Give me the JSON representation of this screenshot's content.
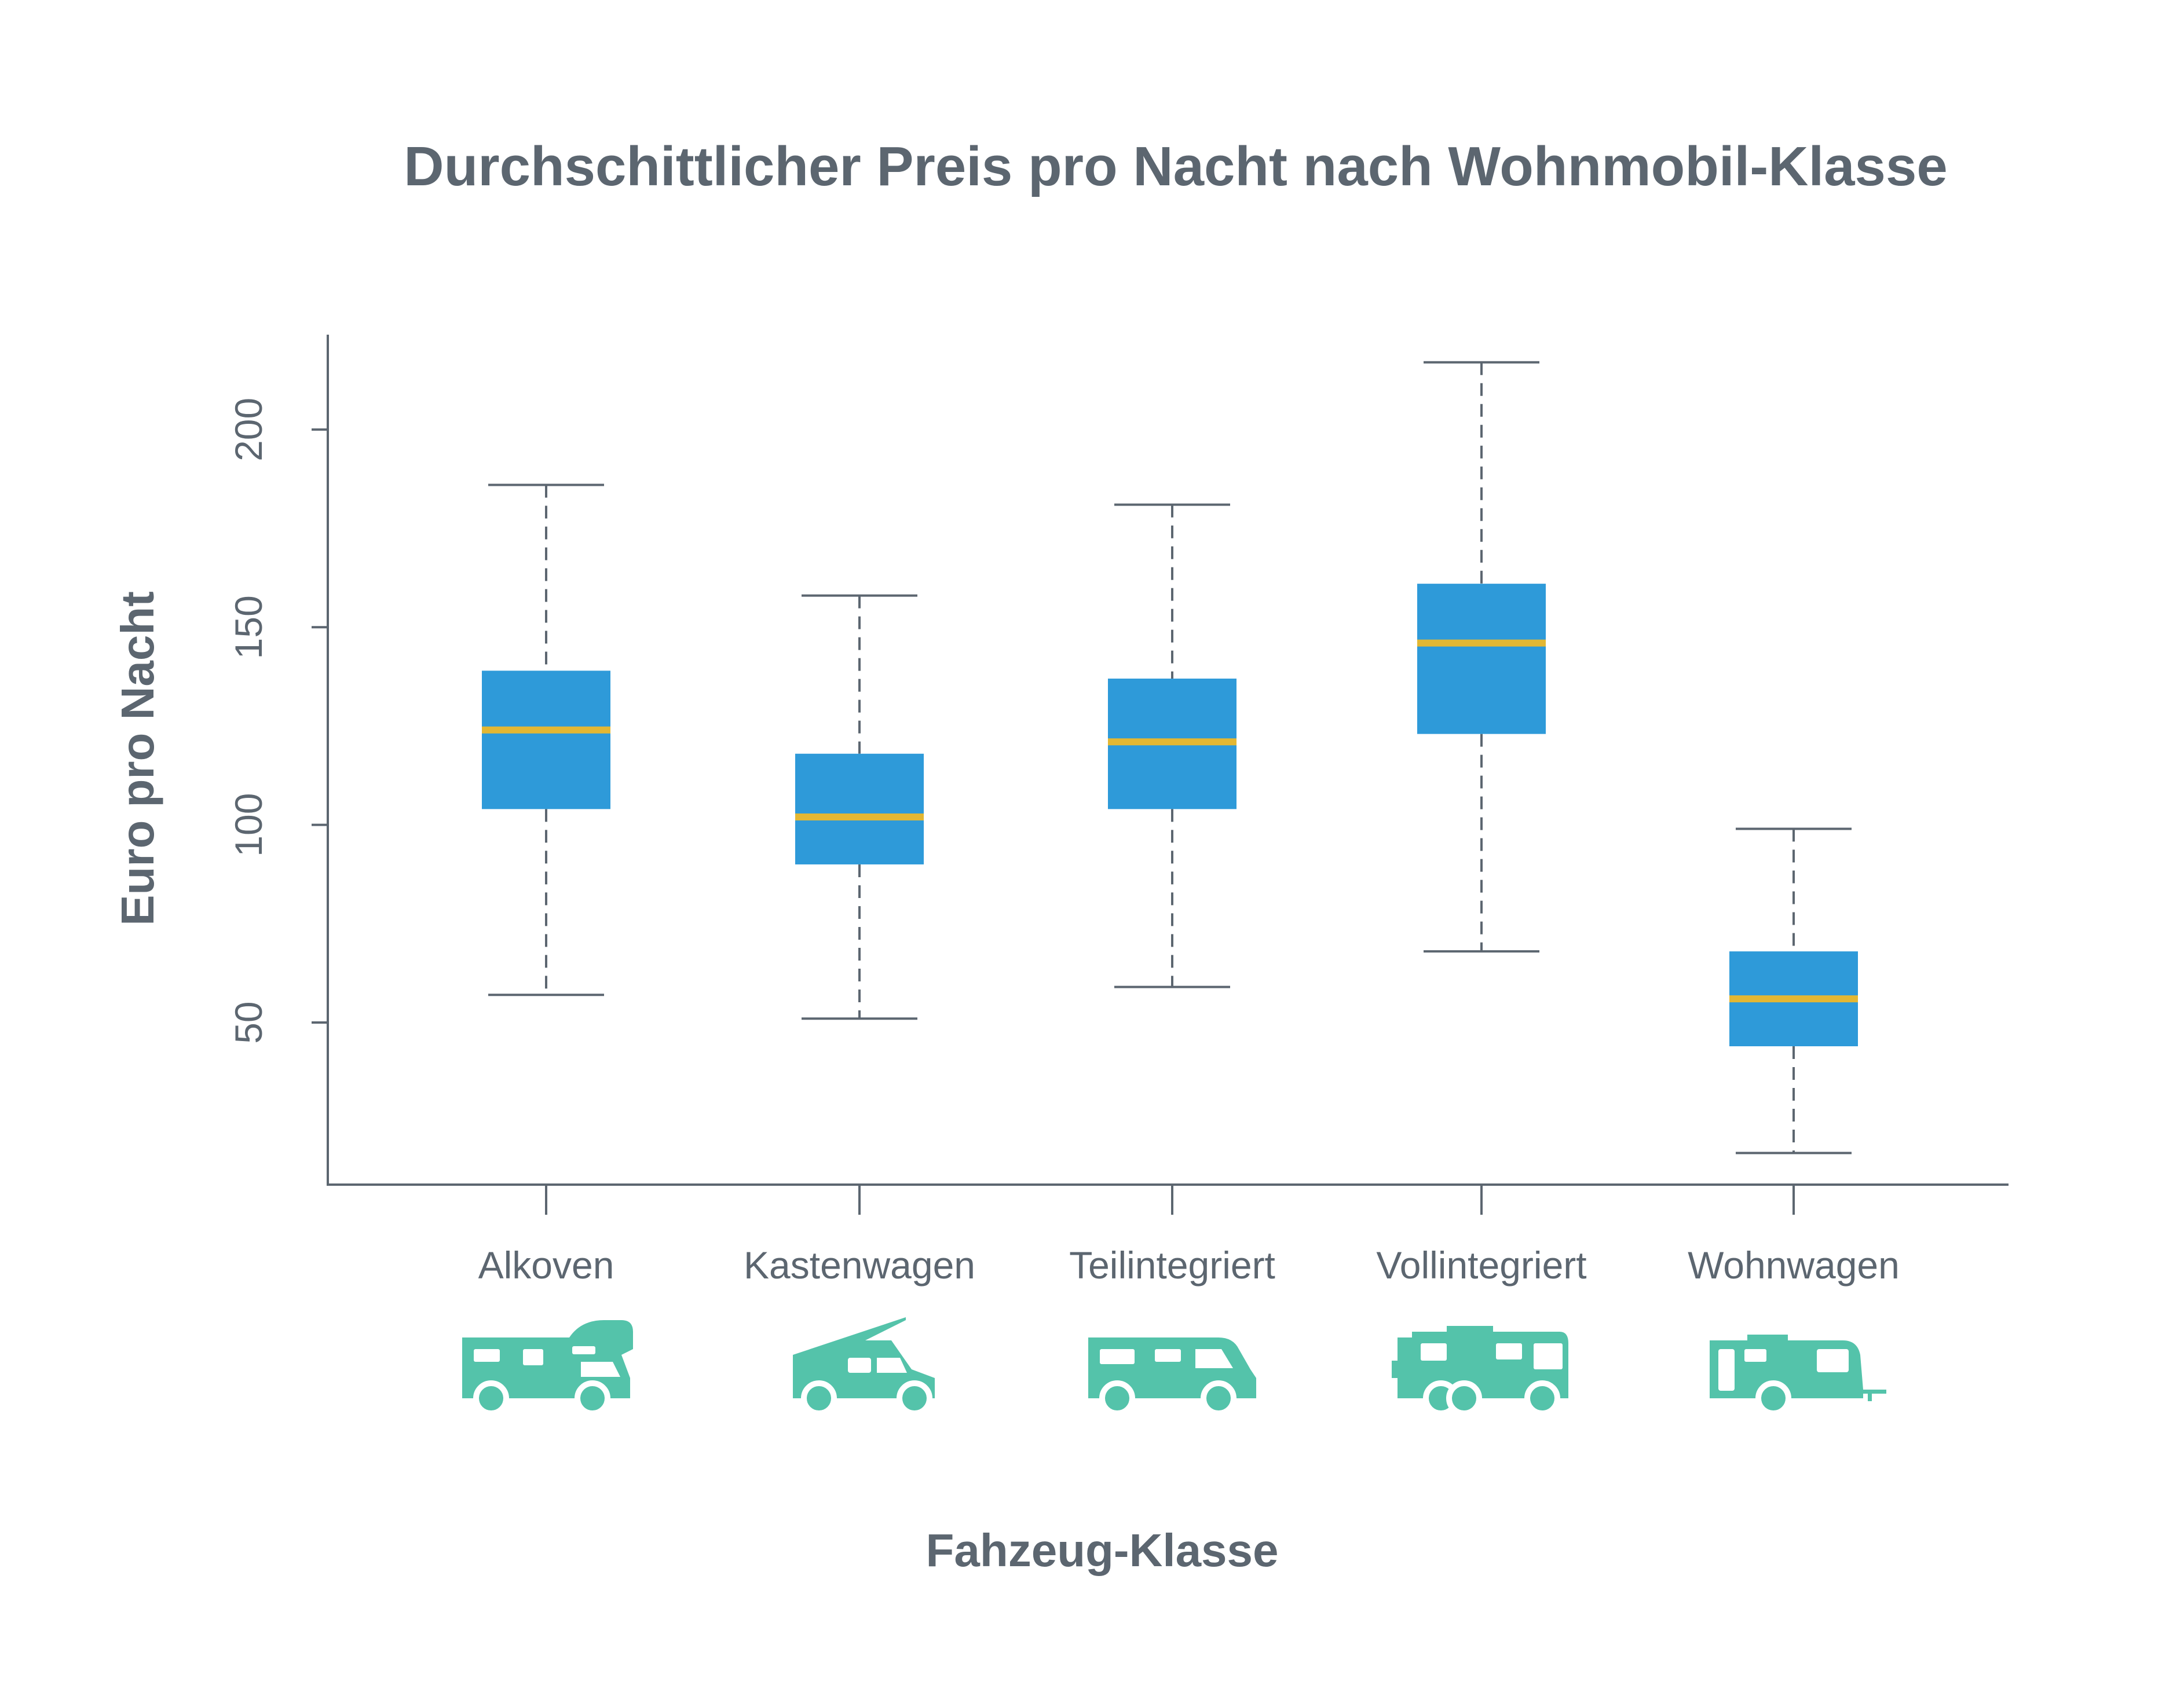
{
  "colors": {
    "text": "#5c6670",
    "axis": "#5c6670",
    "box": "#2e9ad9",
    "median": "#e3b733",
    "whisker": "#5c6670",
    "icon": "#54c3aa"
  },
  "chart_data": {
    "type": "box",
    "title": "Durchschittlicher Preis pro Nacht nach Wohnmobil-Klasse",
    "xlabel": "Fahzeug-Klasse",
    "ylabel": "Euro pro Nacht",
    "ylim": [
      9,
      224
    ],
    "yticks": [
      50,
      100,
      150,
      200
    ],
    "grid": false,
    "categories": [
      "Alkoven",
      "Kastenwagen",
      "Teilintegriert",
      "Vollintegriert",
      "Wohnwagen"
    ],
    "icons": [
      "motorhome-alcove-icon",
      "camper-van-icon",
      "motorhome-semi-integrated-icon",
      "motorhome-integrated-icon",
      "caravan-trailer-icon"
    ],
    "series": [
      {
        "boxes": [
          {
            "min": 57,
            "q1": 104,
            "median": 124,
            "q3": 139,
            "max": 186
          },
          {
            "min": 51,
            "q1": 90,
            "median": 102,
            "q3": 118,
            "max": 158
          },
          {
            "min": 59,
            "q1": 104,
            "median": 121,
            "q3": 137,
            "max": 181
          },
          {
            "min": 68,
            "q1": 123,
            "median": 146,
            "q3": 161,
            "max": 217
          },
          {
            "min": 17,
            "q1": 44,
            "median": 56,
            "q3": 68,
            "max": 99
          }
        ]
      }
    ]
  }
}
